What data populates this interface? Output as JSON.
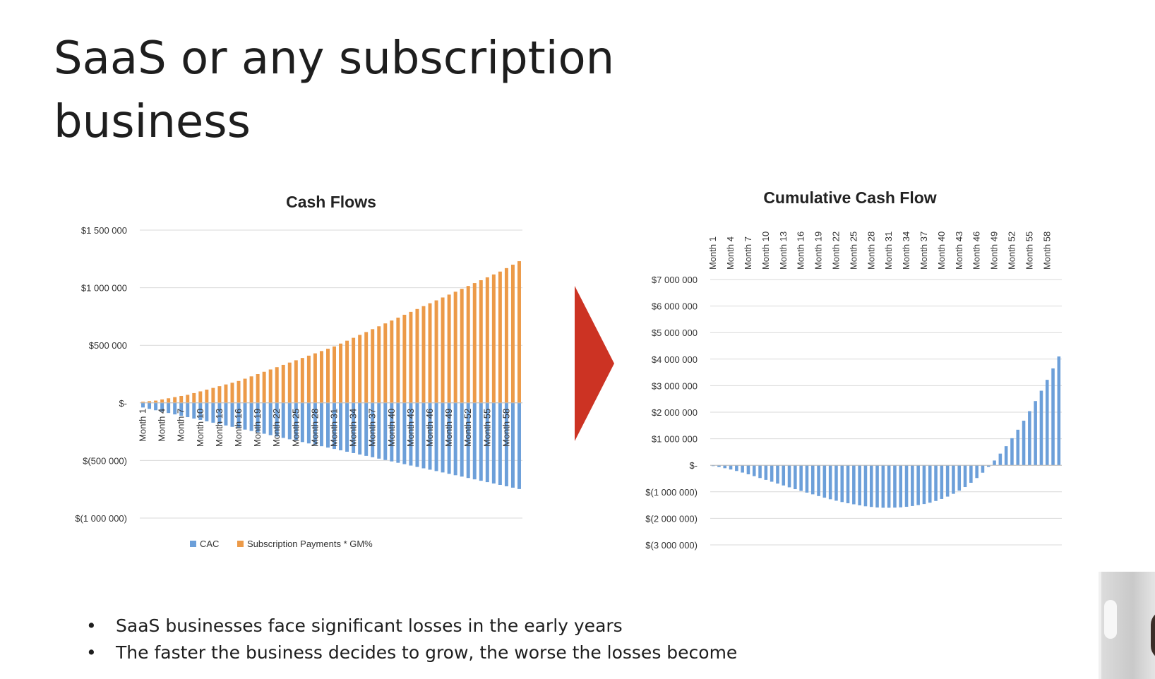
{
  "slide": {
    "title_lines": [
      "SaaS or any subscription",
      "business"
    ],
    "bullets": [
      "SaaS businesses face significant losses in the early years",
      "The faster the business decides to grow, the worse the losses become"
    ],
    "colors": {
      "cac": "#6c9fd9",
      "subscription": "#ec9a48",
      "cumulative": "#6c9fd9",
      "arrow": "#cc3323",
      "grid": "#d9d9d9",
      "axis": "#bfbfbf"
    },
    "decor_icons": [
      "arrow-right-icon",
      "webcam-overlay"
    ]
  },
  "chart_data": [
    {
      "type": "bar",
      "title": "Cash Flows",
      "stacked": true,
      "xlabel": "",
      "ylabel": "",
      "ylim": [
        -1000000,
        1500000
      ],
      "y_ticks": [
        1500000,
        1000000,
        500000,
        0,
        -500000,
        -1000000
      ],
      "y_tick_labels": [
        "$1 500 000",
        "$1 000 000",
        "$500 000",
        "$-",
        "$(500 000)",
        "$(1 000 000)"
      ],
      "x_tick_labels": [
        "Month 1",
        "Month 4",
        "Month 7",
        "Month 10",
        "Month 13",
        "Month 16",
        "Month 19",
        "Month 22",
        "Month 25",
        "Month 28",
        "Month 31",
        "Month 34",
        "Month 37",
        "Month 40",
        "Month 43",
        "Month 46",
        "Month 49",
        "Month 52",
        "Month 55",
        "Month 58"
      ],
      "x_tick_label_position": "near zero line, below",
      "categories": [
        "Month 1",
        "Month 2",
        "Month 3",
        "Month 4",
        "Month 5",
        "Month 6",
        "Month 7",
        "Month 8",
        "Month 9",
        "Month 10",
        "Month 11",
        "Month 12",
        "Month 13",
        "Month 14",
        "Month 15",
        "Month 16",
        "Month 17",
        "Month 18",
        "Month 19",
        "Month 20",
        "Month 21",
        "Month 22",
        "Month 23",
        "Month 24",
        "Month 25",
        "Month 26",
        "Month 27",
        "Month 28",
        "Month 29",
        "Month 30",
        "Month 31",
        "Month 32",
        "Month 33",
        "Month 34",
        "Month 35",
        "Month 36",
        "Month 37",
        "Month 38",
        "Month 39",
        "Month 40",
        "Month 41",
        "Month 42",
        "Month 43",
        "Month 44",
        "Month 45",
        "Month 46",
        "Month 47",
        "Month 48",
        "Month 49",
        "Month 50",
        "Month 51",
        "Month 52",
        "Month 53",
        "Month 54",
        "Month 55",
        "Month 56",
        "Month 57",
        "Month 58",
        "Month 59",
        "Month 60"
      ],
      "legend_position": "bottom",
      "grid": true,
      "series": [
        {
          "name": "CAC",
          "color": "#6c9fd9",
          "values": [
            -40000,
            -52000,
            -64000,
            -76000,
            -88000,
            -100000,
            -112000,
            -124000,
            -136000,
            -148000,
            -160000,
            -172000,
            -184000,
            -196000,
            -208000,
            -220000,
            -232000,
            -244000,
            -256000,
            -268000,
            -280000,
            -292000,
            -304000,
            -316000,
            -328000,
            -340000,
            -352000,
            -364000,
            -376000,
            -388000,
            -400000,
            -412000,
            -424000,
            -436000,
            -448000,
            -460000,
            -472000,
            -484000,
            -496000,
            -508000,
            -520000,
            -532000,
            -544000,
            -556000,
            -568000,
            -580000,
            -592000,
            -604000,
            -616000,
            -628000,
            -640000,
            -652000,
            -664000,
            -676000,
            -688000,
            -700000,
            -712000,
            -724000,
            -736000,
            -748000
          ]
        },
        {
          "name": "Subscription Payments * GM%",
          "color": "#ec9a48",
          "values": [
            10000,
            15000,
            20000,
            30000,
            40000,
            50000,
            60000,
            70000,
            85000,
            100000,
            115000,
            130000,
            145000,
            160000,
            175000,
            190000,
            210000,
            230000,
            250000,
            270000,
            290000,
            310000,
            330000,
            350000,
            370000,
            390000,
            410000,
            430000,
            450000,
            470000,
            490000,
            515000,
            540000,
            565000,
            590000,
            615000,
            640000,
            665000,
            690000,
            715000,
            740000,
            765000,
            790000,
            815000,
            840000,
            865000,
            890000,
            915000,
            940000,
            965000,
            990000,
            1015000,
            1040000,
            1065000,
            1090000,
            1115000,
            1140000,
            1170000,
            1200000,
            1230000
          ]
        }
      ]
    },
    {
      "type": "bar",
      "title": "Cumulative Cash Flow",
      "xlabel": "",
      "ylabel": "",
      "ylim": [
        -3000000,
        7000000
      ],
      "y_ticks": [
        7000000,
        6000000,
        5000000,
        4000000,
        3000000,
        2000000,
        1000000,
        0,
        -1000000,
        -2000000,
        -3000000
      ],
      "y_tick_labels": [
        "$7 000 000",
        "$6 000 000",
        "$5 000 000",
        "$4 000 000",
        "$3 000 000",
        "$2 000 000",
        "$1 000 000",
        "$-",
        "$(1 000 000)",
        "$(2 000 000)",
        "$(3 000 000)"
      ],
      "x_tick_labels": [
        "Month 1",
        "Month 4",
        "Month 7",
        "Month 10",
        "Month 13",
        "Month 16",
        "Month 19",
        "Month 22",
        "Month 25",
        "Month 28",
        "Month 31",
        "Month 34",
        "Month 37",
        "Month 40",
        "Month 43",
        "Month 46",
        "Month 49",
        "Month 52",
        "Month 55",
        "Month 58"
      ],
      "x_tick_label_position": "top",
      "grid": true,
      "series": [
        {
          "name": "",
          "color": "#6c9fd9",
          "values": [
            -30000,
            -65000,
            -110000,
            -160000,
            -215000,
            -275000,
            -340000,
            -410000,
            -480000,
            -550000,
            -620000,
            -690000,
            -760000,
            -830000,
            -900000,
            -965000,
            -1030000,
            -1095000,
            -1160000,
            -1220000,
            -1280000,
            -1335000,
            -1385000,
            -1430000,
            -1470000,
            -1510000,
            -1545000,
            -1570000,
            -1590000,
            -1600000,
            -1600000,
            -1595000,
            -1585000,
            -1565000,
            -1535000,
            -1500000,
            -1460000,
            -1410000,
            -1345000,
            -1270000,
            -1180000,
            -1075000,
            -955000,
            -820000,
            -660000,
            -480000,
            -280000,
            -60000,
            180000,
            440000,
            720000,
            1020000,
            1340000,
            1680000,
            2040000,
            2420000,
            2810000,
            3220000,
            3650000,
            4100000
          ]
        }
      ]
    }
  ]
}
